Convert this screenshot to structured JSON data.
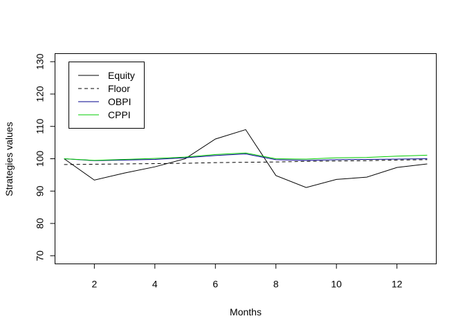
{
  "chart_data": {
    "type": "line",
    "title": "",
    "xlabel": "Months",
    "ylabel": "Strategies values",
    "xlim": [
      0.7,
      13.3
    ],
    "ylim": [
      67.5,
      132.5
    ],
    "x_ticks": [
      2,
      4,
      6,
      8,
      10,
      12
    ],
    "y_ticks": [
      70,
      80,
      90,
      100,
      110,
      120,
      130
    ],
    "grid": false,
    "legend_position": "top-left",
    "x": [
      1,
      2,
      3,
      4,
      5,
      6,
      7,
      8,
      9,
      10,
      11,
      12,
      13
    ],
    "series": [
      {
        "name": "Equity",
        "color": "#000000",
        "dash": "solid",
        "values": [
          100,
          93.4,
          95.6,
          97.5,
          100.0,
          106.1,
          109.0,
          94.8,
          91.1,
          93.6,
          94.3,
          97.3,
          98.4
        ]
      },
      {
        "name": "Floor",
        "color": "#000000",
        "dash": "dashed",
        "values": [
          98.2,
          98.3,
          98.4,
          98.5,
          98.6,
          98.8,
          98.9,
          99.0,
          99.2,
          99.3,
          99.4,
          99.6,
          99.7
        ]
      },
      {
        "name": "OBPI",
        "color": "#00008b",
        "dash": "solid",
        "values": [
          100,
          99.4,
          99.6,
          99.8,
          100.3,
          101.0,
          101.5,
          99.7,
          99.5,
          99.7,
          99.8,
          99.9,
          100.0
        ]
      },
      {
        "name": "CPPI",
        "color": "#00cc00",
        "dash": "solid",
        "values": [
          100,
          99.5,
          99.8,
          100.1,
          100.5,
          101.3,
          101.8,
          100.0,
          99.9,
          100.3,
          100.4,
          100.8,
          101.1
        ]
      }
    ]
  }
}
